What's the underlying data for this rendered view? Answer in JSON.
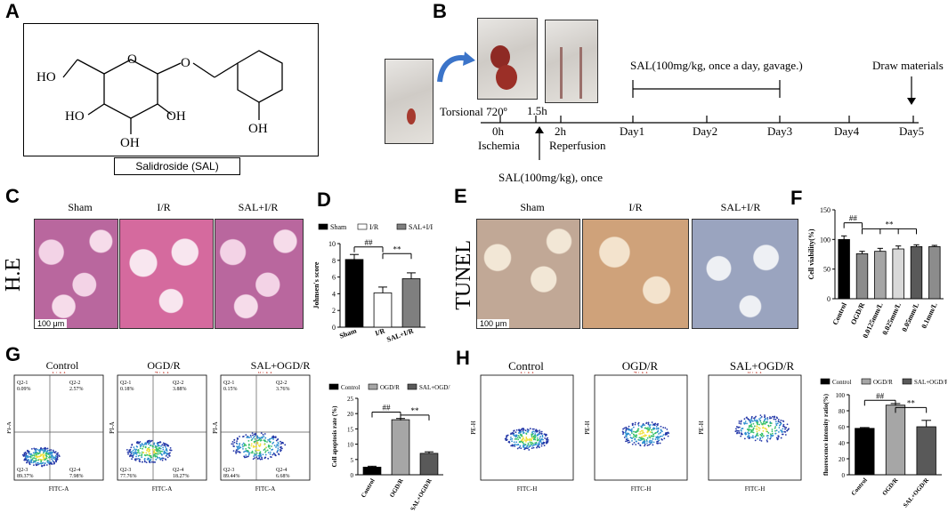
{
  "panels": {
    "a": {
      "label": "A",
      "caption": "Salidroside (SAL)"
    },
    "b": {
      "label": "B",
      "torsional": "Torsional 720º",
      "sal_daily": "SAL(100mg/kg, once a day, gavage.)",
      "draw": "Draw materials",
      "ticks": [
        "0h",
        "1.5h",
        "2h",
        "Day1",
        "Day2",
        "Day3",
        "Day4",
        "Day5"
      ],
      "ischemia": "Ischemia",
      "reperfusion": "Reperfusion",
      "sal_once": "SAL(100mg/kg), once"
    },
    "c": {
      "label": "C",
      "cols": [
        "Sham",
        "I/R",
        "SAL+I/R"
      ],
      "side": "H.E",
      "scale": "100 μm"
    },
    "d": {
      "label": "D",
      "legend": [
        "Sham",
        "I/R",
        "SAL+I/R"
      ],
      "ylabel": "Johnsen's score",
      "sig1": "##",
      "sig2": "**"
    },
    "e": {
      "label": "E",
      "cols": [
        "Sham",
        "I/R",
        "SAL+I/R"
      ],
      "side": "TUNEL",
      "scale": "100 μm"
    },
    "f": {
      "label": "F",
      "ylabel": "Cell viability(%)",
      "sig1": "##",
      "sig2": "**"
    },
    "g": {
      "label": "G",
      "cols": [
        "Control",
        "OGD/R",
        "SAL+OGD/R"
      ],
      "plot_titles": [
        "1 / P1",
        "4 / P1",
        "8 / P1"
      ],
      "quads": [
        [
          "Q2-1\n0.09%",
          "Q2-2\n2.57%",
          "Q2-3\n89.37%",
          "Q2-4\n7.98%"
        ],
        [
          "Q2-1\n0.18%",
          "Q2-2\n3.88%",
          "Q2-3\n77.76%",
          "Q2-4\n18.27%"
        ],
        [
          "Q2-1\n0.15%",
          "Q2-2\n3.76%",
          "Q2-3\n89.44%",
          "Q2-4\n6.68%"
        ]
      ],
      "xaxis": "FITC-A",
      "yaxis": "PI-A",
      "legend": [
        "Control",
        "OGD/R",
        "SAL+OGD/R"
      ],
      "ylabel": "Cell apoptosis rate (%)",
      "sig1": "##",
      "sig2": "**"
    },
    "h": {
      "label": "H",
      "cols": [
        "Control",
        "OGD/R",
        "SAL+OGD/R"
      ],
      "plot_titles": [
        "1 / P1",
        "4 / P1",
        "8 / P1"
      ],
      "xaxis": "FITC-H",
      "yaxis": "PE-H",
      "legend": [
        "Control",
        "OGD/R",
        "SAL+OGD/R"
      ],
      "ylabel": "fluorescence intensity ratio(%)",
      "sig1": "##",
      "sig2": "**"
    }
  },
  "chart_data": [
    {
      "panel": "D",
      "type": "bar",
      "categories": [
        "Sham",
        "I/R",
        "SAL+I/R"
      ],
      "values": [
        8.1,
        4.1,
        5.8
      ],
      "errors": [
        0.6,
        0.7,
        0.7
      ],
      "colors": [
        "#000000",
        "#ffffff",
        "#7f7f7f"
      ],
      "ylabel": "Johnsen's score",
      "ylim": [
        0,
        10
      ],
      "yticks": [
        0,
        2,
        4,
        6,
        8,
        10
      ]
    },
    {
      "panel": "F",
      "type": "bar",
      "categories": [
        "Control",
        "OGD/R",
        "0.0125mm/L",
        "0.025mm/L",
        "0.05mm/L",
        "0.1mm/L"
      ],
      "values": [
        100,
        76,
        80,
        84,
        88,
        88
      ],
      "errors": [
        6,
        4,
        5,
        5,
        3,
        2
      ],
      "colors": [
        "#000000",
        "#8c8c8c",
        "#a6a6a6",
        "#d9d9d9",
        "#595959",
        "#8c8c8c"
      ],
      "ylabel": "Cell viability(%)",
      "ylim": [
        0,
        150
      ],
      "yticks": [
        0,
        50,
        100,
        150
      ]
    },
    {
      "panel": "G",
      "type": "bar",
      "categories": [
        "Control",
        "OGD/R",
        "SAL+OGD/R"
      ],
      "values": [
        2.5,
        18,
        7
      ],
      "errors": [
        0.3,
        0.4,
        0.5
      ],
      "colors": [
        "#000000",
        "#a6a6a6",
        "#595959"
      ],
      "ylabel": "Cell apoptosis rate (%)",
      "ylim": [
        0,
        25
      ],
      "yticks": [
        0,
        5,
        10,
        15,
        20,
        25
      ]
    },
    {
      "panel": "H",
      "type": "bar",
      "categories": [
        "Control",
        "OGD/R",
        "SAL+OGD/R"
      ],
      "values": [
        58,
        87,
        60
      ],
      "errors": [
        1,
        2,
        8
      ],
      "colors": [
        "#000000",
        "#a6a6a6",
        "#595959"
      ],
      "ylabel": "fluorescence intensity ratio(%)",
      "ylim": [
        0,
        100
      ],
      "yticks": [
        0,
        20,
        40,
        60,
        80,
        100
      ]
    }
  ]
}
